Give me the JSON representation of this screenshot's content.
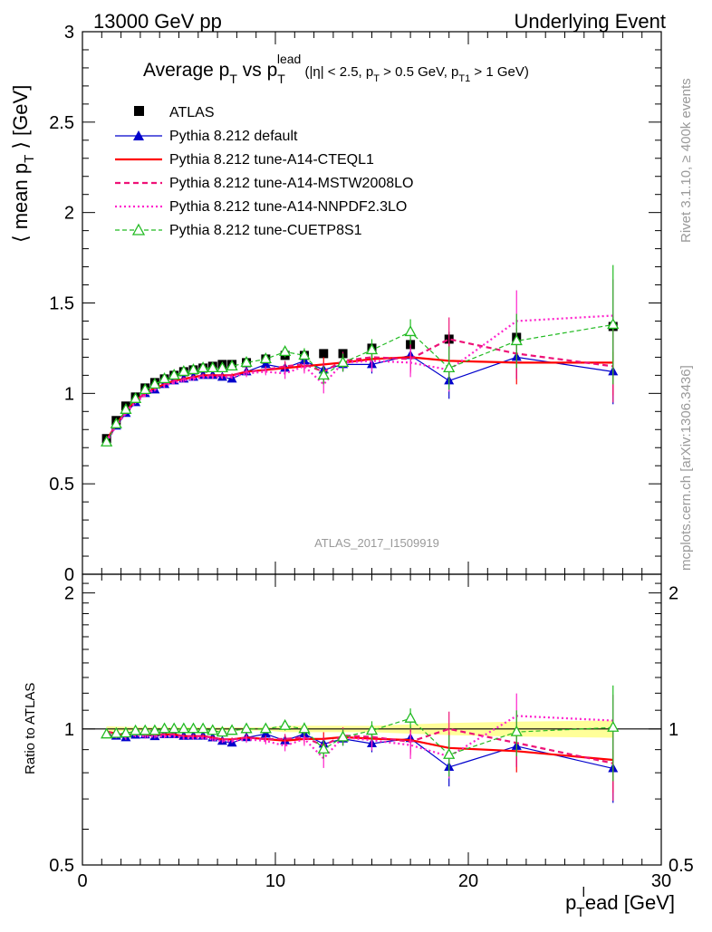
{
  "header": {
    "left": "13000 GeV pp",
    "right": "Underlying Event"
  },
  "side_labels": {
    "rivet": "Rivet 3.1.10, ≥ 400k events",
    "source": "mcplots.cern.ch [arXiv:1306.3436]"
  },
  "watermark": "ATLAS_2017_I1509919",
  "title": {
    "t1": "Average p",
    "sub1": "T",
    "t2": " vs p",
    "sub2": "T",
    "sup2": "lead",
    "t3": " (|η| < 2.5, p",
    "sub3": "T",
    "t4": " > 0.5 GeV, p",
    "sub4": "T1",
    "t5": " > 1 GeV)"
  },
  "ylabel_main": {
    "a": "⟨ mean p",
    "sub": "T",
    "b": " ⟩ [GeV]"
  },
  "ylabel_ratio": "Ratio to ATLAS",
  "xlabel": {
    "a": "p",
    "sub": "T",
    "sup": "l",
    "b": "ead [GeV]"
  },
  "colors": {
    "data": "#000000",
    "default": "#0000cc",
    "cteql1": "#ff0000",
    "mstw": "#ee1177",
    "nnpdf": "#ff22cc",
    "cuetp": "#22bb22",
    "band": "#ffff99"
  },
  "chart_data": {
    "type": "scatter",
    "x": [
      1.25,
      1.75,
      2.25,
      2.75,
      3.25,
      3.75,
      4.25,
      4.75,
      5.25,
      5.75,
      6.25,
      6.75,
      7.25,
      7.75,
      8.5,
      9.5,
      10.5,
      11.5,
      12.5,
      13.5,
      15,
      17,
      19,
      22.5,
      27.5
    ],
    "xlim": [
      0,
      30
    ],
    "xticks": [
      0,
      10,
      20,
      30
    ],
    "ylim_main": [
      0,
      3
    ],
    "yticks_main": [
      "0",
      "0.5",
      "1",
      "1.5",
      "2",
      "2.5",
      "3"
    ],
    "ylim_ratio": [
      0.5,
      2.2
    ],
    "yticks_ratio": [
      "0.5",
      "1",
      "2"
    ],
    "series": [
      {
        "name": "ATLAS",
        "key": "data",
        "style": "square",
        "values": [
          0.75,
          0.85,
          0.93,
          0.98,
          1.03,
          1.06,
          1.08,
          1.1,
          1.12,
          1.13,
          1.14,
          1.15,
          1.16,
          1.16,
          1.17,
          1.19,
          1.21,
          1.21,
          1.22,
          1.22,
          1.25,
          1.27,
          1.3,
          1.31,
          1.37
        ],
        "errors": [
          0.01,
          0.01,
          0.01,
          0.01,
          0.01,
          0.01,
          0.01,
          0.01,
          0.01,
          0.01,
          0.01,
          0.01,
          0.01,
          0.01,
          0.01,
          0.01,
          0.02,
          0.02,
          0.02,
          0.02,
          0.02,
          0.03,
          0.04,
          0.05,
          0.06
        ]
      },
      {
        "name": "Pythia 8.212 default",
        "key": "default",
        "style": "tri-filled",
        "values": [
          0.73,
          0.82,
          0.89,
          0.95,
          1.0,
          1.02,
          1.05,
          1.07,
          1.08,
          1.09,
          1.1,
          1.1,
          1.09,
          1.08,
          1.12,
          1.16,
          1.14,
          1.18,
          1.13,
          1.16,
          1.16,
          1.21,
          1.07,
          1.2,
          1.12
        ],
        "errors": [
          0.01,
          0.01,
          0.01,
          0.01,
          0.01,
          0.01,
          0.01,
          0.01,
          0.01,
          0.01,
          0.01,
          0.01,
          0.01,
          0.01,
          0.02,
          0.02,
          0.03,
          0.03,
          0.04,
          0.04,
          0.05,
          0.08,
          0.1,
          0.12,
          0.18
        ]
      },
      {
        "name": "Pythia 8.212 tune-A14-CTEQL1",
        "key": "cteql1",
        "style": "solid",
        "values": [
          0.74,
          0.83,
          0.9,
          0.96,
          1.0,
          1.03,
          1.05,
          1.07,
          1.08,
          1.09,
          1.1,
          1.1,
          1.1,
          1.1,
          1.12,
          1.13,
          1.14,
          1.15,
          1.16,
          1.17,
          1.19,
          1.2,
          1.18,
          1.17,
          1.17
        ],
        "errors": [
          0.01,
          0.01,
          0.01,
          0.01,
          0.01,
          0.01,
          0.01,
          0.01,
          0.01,
          0.01,
          0.01,
          0.01,
          0.01,
          0.01,
          0.02,
          0.02,
          0.03,
          0.03,
          0.04,
          0.04,
          0.05,
          0.08,
          0.1,
          0.12,
          0.18
        ]
      },
      {
        "name": "Pythia 8.212 tune-A14-MSTW2008LO",
        "key": "mstw",
        "style": "dashed",
        "values": [
          0.74,
          0.83,
          0.9,
          0.96,
          1.0,
          1.03,
          1.05,
          1.07,
          1.08,
          1.09,
          1.1,
          1.1,
          1.1,
          1.1,
          1.12,
          1.13,
          1.15,
          1.16,
          1.12,
          1.18,
          1.2,
          1.19,
          1.3,
          1.22,
          1.15
        ],
        "errors": [
          0.01,
          0.01,
          0.01,
          0.01,
          0.01,
          0.01,
          0.01,
          0.01,
          0.01,
          0.01,
          0.01,
          0.01,
          0.01,
          0.01,
          0.02,
          0.02,
          0.03,
          0.03,
          0.05,
          0.05,
          0.06,
          0.08,
          0.12,
          0.14,
          0.2
        ]
      },
      {
        "name": "Pythia 8.212 tune-A14-NNPDF2.3LO",
        "key": "nnpdf",
        "style": "dotted",
        "values": [
          0.73,
          0.82,
          0.89,
          0.95,
          0.99,
          1.02,
          1.04,
          1.06,
          1.07,
          1.08,
          1.09,
          1.09,
          1.09,
          1.09,
          1.11,
          1.12,
          1.11,
          1.15,
          1.05,
          1.17,
          1.18,
          1.17,
          1.13,
          1.4,
          1.43
        ],
        "errors": [
          0.01,
          0.01,
          0.01,
          0.01,
          0.01,
          0.01,
          0.01,
          0.01,
          0.01,
          0.01,
          0.01,
          0.01,
          0.01,
          0.01,
          0.02,
          0.02,
          0.03,
          0.04,
          0.05,
          0.05,
          0.06,
          0.08,
          0.12,
          0.17,
          0.2
        ]
      },
      {
        "name": "Pythia 8.212 tune-CUETP8S1",
        "key": "cuetp",
        "style": "tri-open-dashed",
        "values": [
          0.73,
          0.83,
          0.91,
          0.97,
          1.02,
          1.05,
          1.08,
          1.1,
          1.12,
          1.13,
          1.14,
          1.14,
          1.14,
          1.15,
          1.17,
          1.19,
          1.23,
          1.21,
          1.1,
          1.17,
          1.24,
          1.34,
          1.14,
          1.29,
          1.38
        ],
        "errors": [
          0.01,
          0.01,
          0.01,
          0.01,
          0.01,
          0.01,
          0.01,
          0.01,
          0.01,
          0.01,
          0.01,
          0.01,
          0.01,
          0.01,
          0.02,
          0.02,
          0.03,
          0.04,
          0.05,
          0.05,
          0.06,
          0.07,
          0.12,
          0.15,
          0.33
        ]
      }
    ]
  }
}
